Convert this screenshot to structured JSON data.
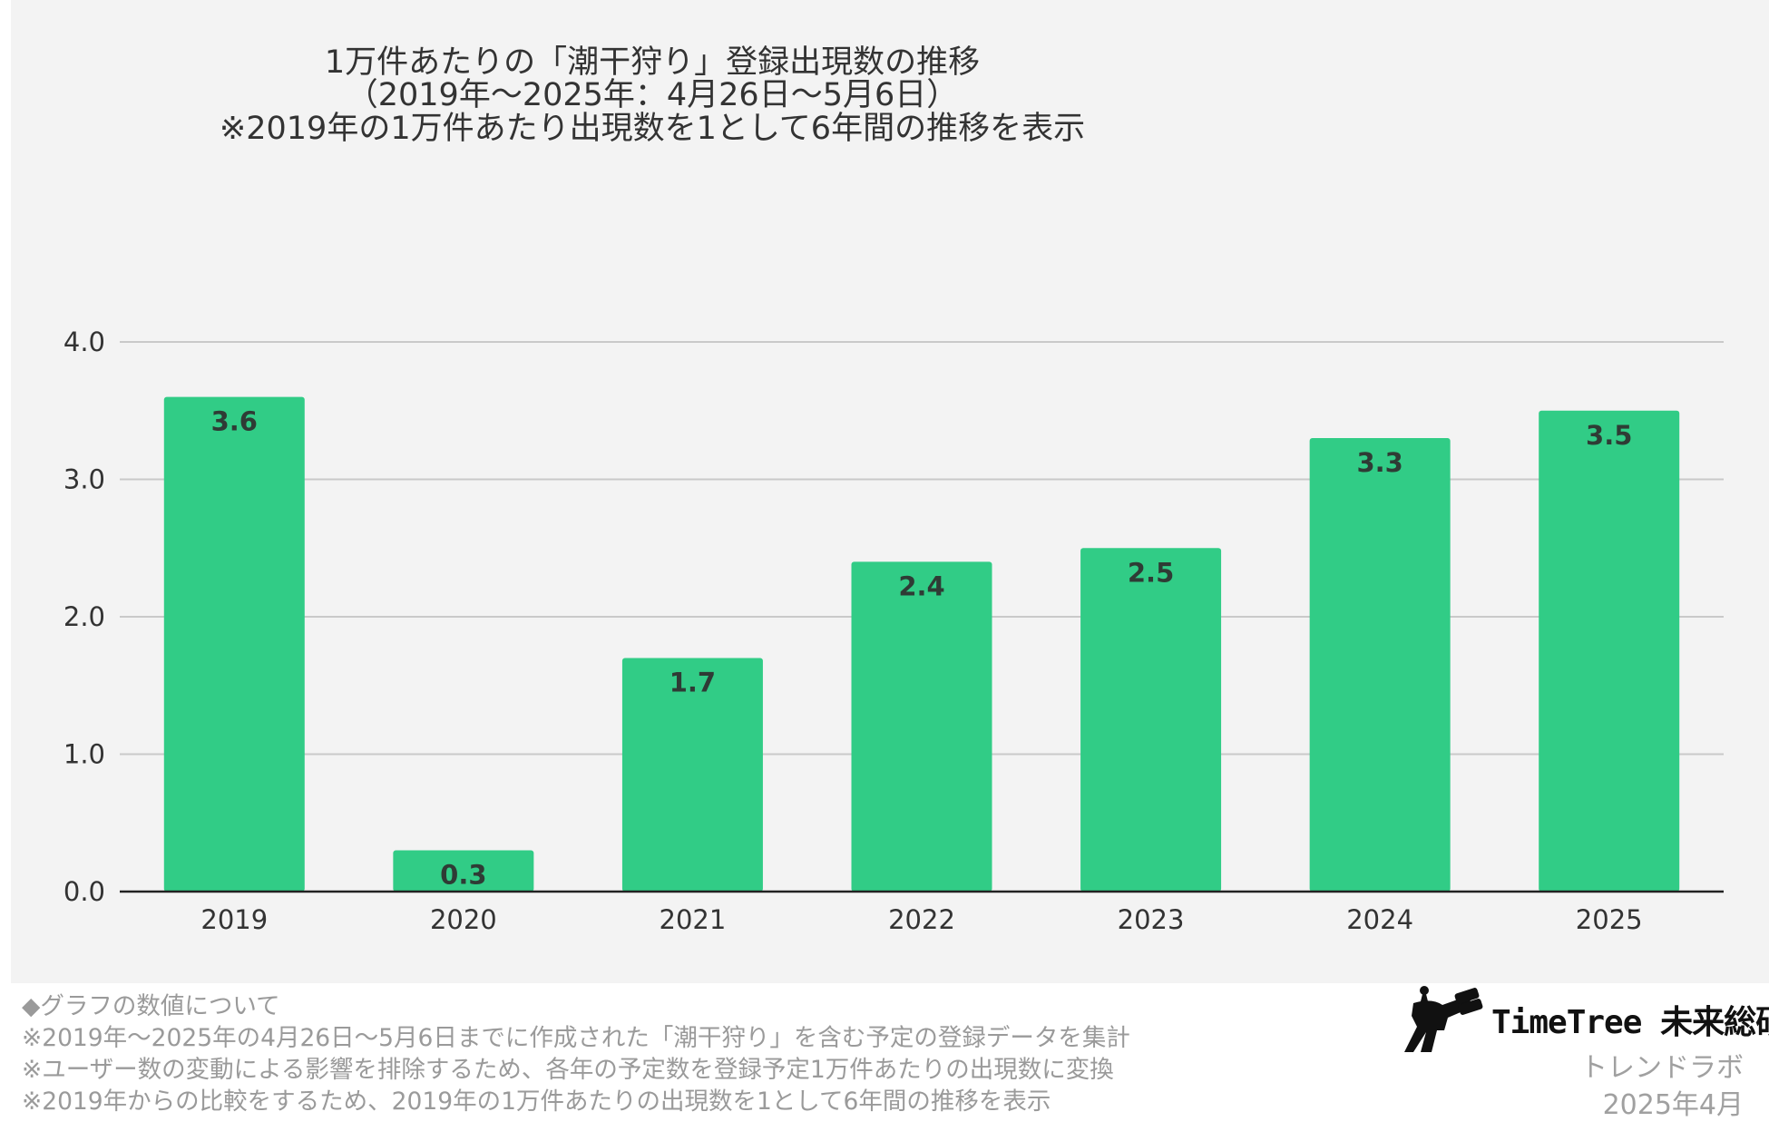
{
  "chart_data": {
    "type": "bar",
    "title_lines": [
      "1万件あたりの「潮干狩り」登録出現数の推移",
      "（2019年〜2025年：4月26日〜5月6日）",
      "※2019年の1万件あたり出現数を1として6年間の推移を表示"
    ],
    "categories": [
      "2019",
      "2020",
      "2021",
      "2022",
      "2023",
      "2024",
      "2025"
    ],
    "values": [
      3.6,
      0.3,
      1.7,
      2.4,
      2.5,
      3.3,
      3.5
    ],
    "data_labels": [
      "3.6",
      "0.3",
      "1.7",
      "2.4",
      "2.5",
      "3.3",
      "3.5"
    ],
    "y_ticks": [
      "0.0",
      "1.0",
      "2.0",
      "3.0",
      "4.0"
    ],
    "y_tick_values": [
      0,
      1,
      2,
      3,
      4
    ],
    "ylim": [
      0,
      4
    ],
    "xlabel": "",
    "ylabel": "",
    "grid": true,
    "legend": "none",
    "bar_color": "#31cc86"
  },
  "notes": {
    "heading": "◆グラフの数値について",
    "lines": [
      "※2019年〜2025年の4月26日〜5月6日までに作成された「潮干狩り」を含む予定の登録データを集計",
      "※ユーザー数の変動による影響を排除するため、各年の予定数を登録予定1万件あたりの出現数に変換",
      "※2019年からの比較をするため、2019年の1万件あたりの出現数を1として6年間の推移を表示"
    ]
  },
  "brand": {
    "name": "TimeTree 未来総研",
    "subtitle": "トレンドラボ",
    "date": "2025年4月"
  }
}
